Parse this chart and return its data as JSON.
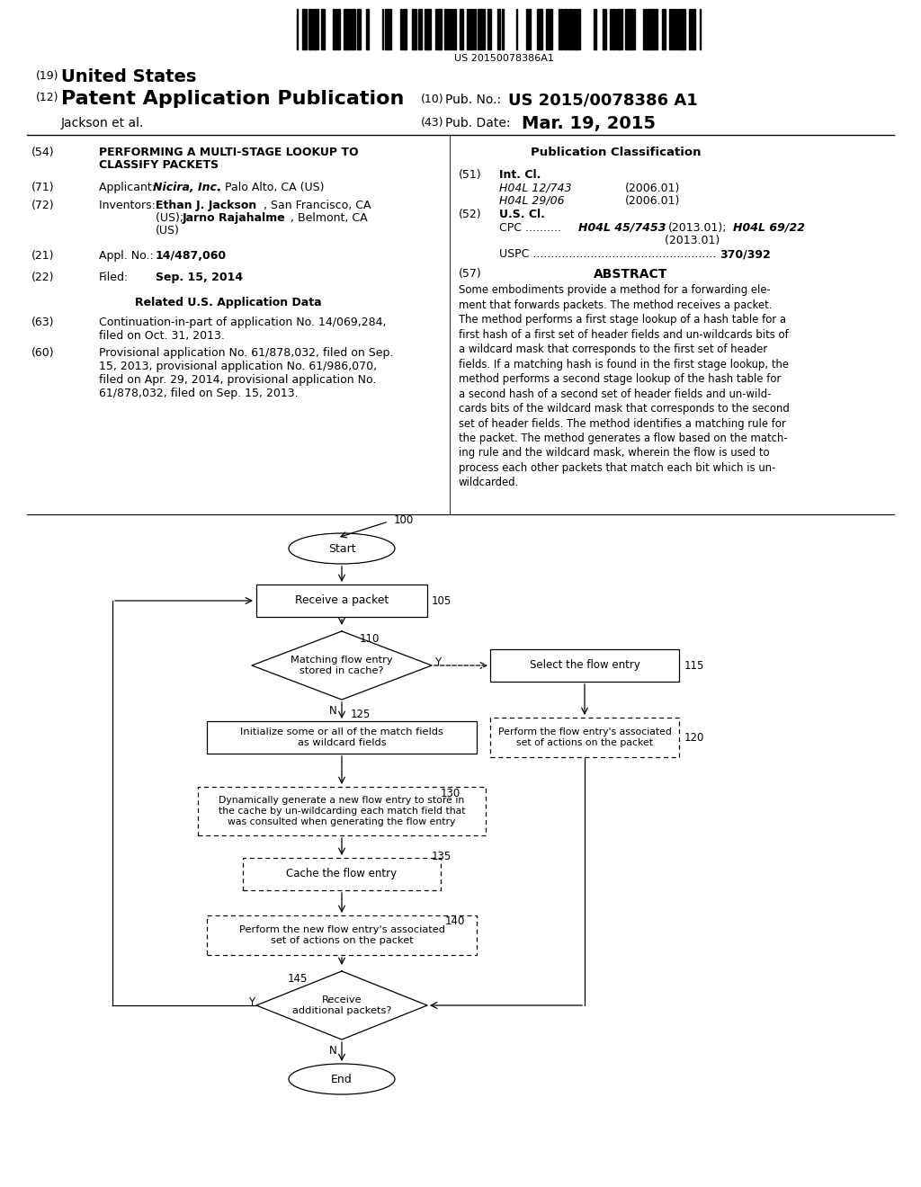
{
  "background_color": "#ffffff",
  "barcode_text": "US 20150078386A1",
  "flowchart": {
    "node105": "Receive a packet",
    "node110": "Matching flow entry\nstored in cache?",
    "node115": "Select the flow entry",
    "node120": "Perform the flow entry's associated\nset of actions on the packet",
    "node125": "Initialize some or all of the match fields\nas wildcard fields",
    "node130": "Dynamically generate a new flow entry to store in\nthe cache by un-wildcarding each match field that\nwas consulted when generating the flow entry",
    "node135": "Cache the flow entry",
    "node140": "Perform the new flow entry's associated\nset of actions on the packet",
    "node145": "Receive\nadditional packets?"
  }
}
